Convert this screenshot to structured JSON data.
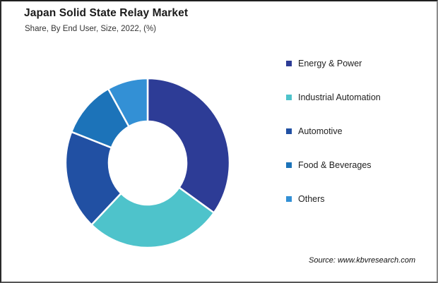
{
  "chart_data": {
    "type": "pie",
    "variant": "donut",
    "title": "Japan Solid State Relay Market",
    "subtitle": "Share, By End User, Size, 2022, (%)",
    "unit": "%",
    "categories": [
      "Energy & Power",
      "Industrial Automation",
      "Automotive",
      "Food & Beverages",
      "Others"
    ],
    "values": [
      35,
      27,
      19,
      11,
      8
    ],
    "colors": [
      "#2D3C96",
      "#4EC3CB",
      "#2150A3",
      "#1C73B9",
      "#3390D5"
    ],
    "start_angle_deg": 0,
    "direction": "clockwise",
    "donut_hole_ratio": 0.48,
    "data_labels_shown": false,
    "legend_position": "right",
    "slice_divider_color": "#ffffff"
  },
  "footer": {
    "source": "Source: www.kbvresearch.com"
  }
}
